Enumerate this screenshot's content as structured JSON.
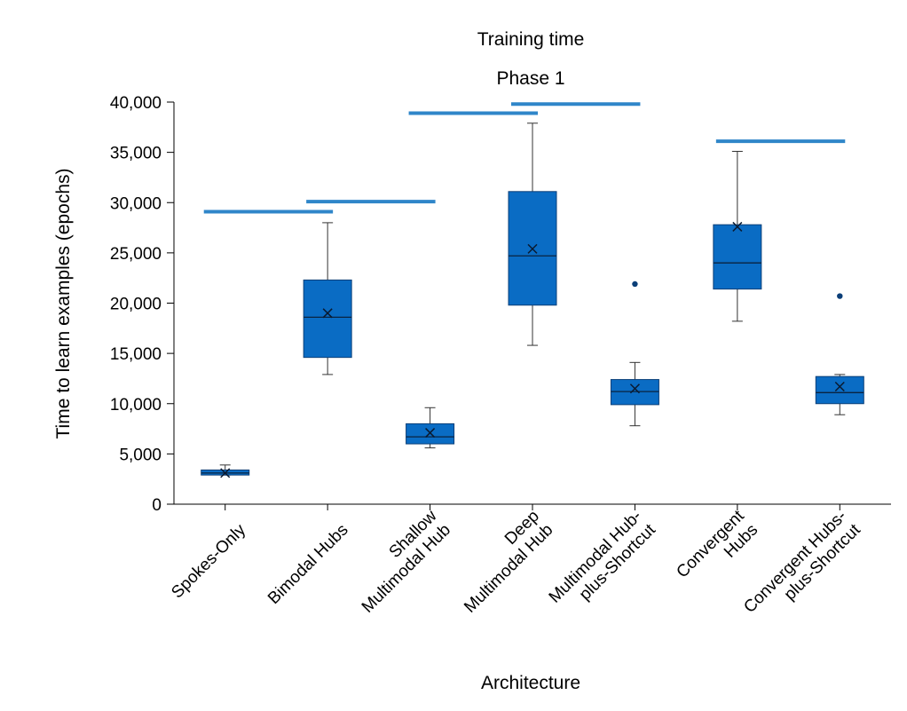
{
  "chart_data": {
    "type": "box",
    "title": "Training time",
    "subtitle": "Phase 1",
    "xlabel": "Architecture",
    "ylabel": "Time to learn examples (epochs)",
    "ylim": [
      0,
      40000
    ],
    "yticks": [
      0,
      5000,
      10000,
      15000,
      20000,
      25000,
      30000,
      35000,
      40000
    ],
    "ytick_labels": [
      "0",
      "5,000",
      "10,000",
      "15,000",
      "20,000",
      "25,000",
      "30,000",
      "35,000",
      "40,000"
    ],
    "categories": [
      [
        "Spokes-Only"
      ],
      [
        "Bimodal Hubs"
      ],
      [
        "Shallow",
        "Multimodal Hub"
      ],
      [
        "Deep",
        "Multimodal Hub"
      ],
      [
        "Multimodal Hub-",
        "plus-Shortcut"
      ],
      [
        "Convergent",
        "Hubs"
      ],
      [
        "Convergent Hubs-",
        "plus-Shortcut"
      ]
    ],
    "boxes": [
      {
        "min": 2900,
        "q1": 2900,
        "median": 3100,
        "q3": 3400,
        "max": 3900,
        "mean": 3100,
        "outliers": []
      },
      {
        "min": 12900,
        "q1": 14600,
        "median": 18600,
        "q3": 22300,
        "max": 28000,
        "mean": 19000,
        "outliers": []
      },
      {
        "min": 5600,
        "q1": 6000,
        "median": 6700,
        "q3": 8000,
        "max": 9600,
        "mean": 7100,
        "outliers": []
      },
      {
        "min": 15800,
        "q1": 19800,
        "median": 24700,
        "q3": 31100,
        "max": 37900,
        "mean": 25400,
        "outliers": []
      },
      {
        "min": 7800,
        "q1": 9900,
        "median": 11200,
        "q3": 12400,
        "max": 14100,
        "mean": 11500,
        "outliers": [
          21900
        ]
      },
      {
        "min": 18200,
        "q1": 21400,
        "median": 24000,
        "q3": 27800,
        "max": 35100,
        "mean": 27600,
        "outliers": []
      },
      {
        "min": 8900,
        "q1": 10000,
        "median": 11100,
        "q3": 12700,
        "max": 12900,
        "mean": 11700,
        "outliers": [
          20700
        ]
      }
    ],
    "significance_bars": [
      {
        "from": 0,
        "to": 1,
        "y": 29100
      },
      {
        "from": 1,
        "to": 2,
        "y": 30100
      },
      {
        "from": 2,
        "to": 3,
        "y": 38900
      },
      {
        "from": 3,
        "to": 4,
        "y": 39800
      },
      {
        "from": 5,
        "to": 6,
        "y": 36100
      }
    ],
    "colors": {
      "box_fill": "#0a6cc4",
      "box_stroke": "#0b3f78",
      "significance": "#2f86c9",
      "outlier": "#0b3f78"
    },
    "grid": false,
    "legend": "none"
  }
}
